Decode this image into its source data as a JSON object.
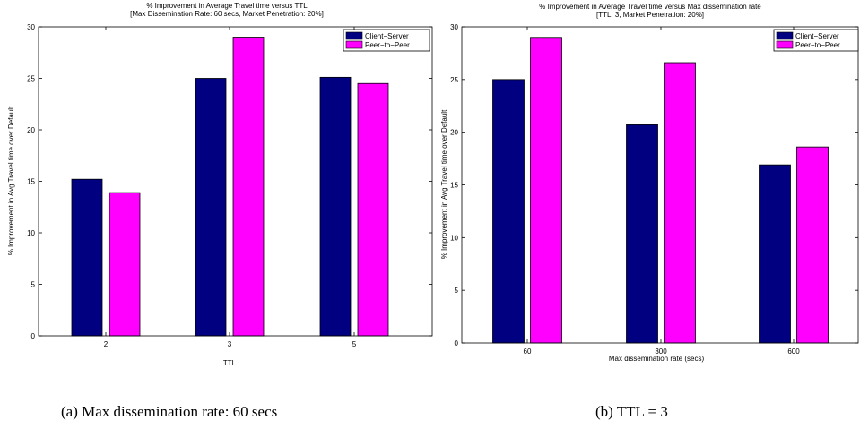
{
  "chart_data": [
    {
      "type": "bar",
      "title": "% Improvement in Average Travel time versus TTL",
      "subtitle": "[Max Dissemination Rate: 60 secs, Market Penetration: 20%]",
      "xlabel": "TTL",
      "ylabel": "% Improvement in Avg Travel time over Default",
      "categories": [
        "2",
        "3",
        "5"
      ],
      "series": [
        {
          "name": "Client−Server",
          "values": [
            15.2,
            25.0,
            25.1
          ]
        },
        {
          "name": "Peer−to−Peer",
          "values": [
            13.9,
            29.0,
            24.5
          ]
        }
      ],
      "ylim": [
        0,
        30
      ],
      "yticks": [
        "0",
        "5",
        "10",
        "15",
        "20",
        "25",
        "30"
      ],
      "legend": "top-right",
      "grid": false,
      "caption": "(a) Max dissemination rate: 60 secs"
    },
    {
      "type": "bar",
      "title": "% Improvement in Average Travel time versus Max dissemination rate",
      "subtitle": "[TTL: 3, Market Penetration: 20%]",
      "xlabel": "Max dissemination rate (secs)",
      "ylabel": "% Improvement in Avg Travel time over Default",
      "categories": [
        "60",
        "300",
        "600"
      ],
      "series": [
        {
          "name": "Client−Server",
          "values": [
            25.0,
            20.7,
            16.9
          ]
        },
        {
          "name": "Peer−to−Peer",
          "values": [
            29.0,
            26.6,
            18.6
          ]
        }
      ],
      "ylim": [
        0,
        30
      ],
      "yticks": [
        "0",
        "5",
        "10",
        "15",
        "20",
        "25",
        "30"
      ],
      "legend": "top-right",
      "grid": false,
      "caption": "(b) TTL = 3"
    }
  ],
  "colors": {
    "client_server": "#000080",
    "peer_to_peer": "#ff00ff"
  }
}
